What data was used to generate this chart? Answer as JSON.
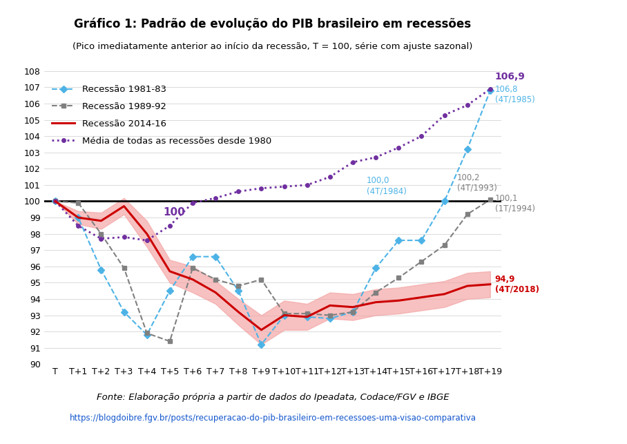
{
  "title": "Gráfico 1: Padrão de evolução do PIB brasileiro em recessões",
  "subtitle": "(Pico imediatamente anterior ao início da recessão, T = 100, série com ajuste sazonal)",
  "x_labels": [
    "T",
    "T+1",
    "T+2",
    "T+3",
    "T+4",
    "T+5",
    "T+6",
    "T+7",
    "T+8",
    "T+9",
    "T+10",
    "T+11",
    "T+12",
    "T+13",
    "T+14",
    "T+15",
    "T+16",
    "T+17",
    "T+18",
    "T+19"
  ],
  "ylim": [
    90,
    108
  ],
  "yticks": [
    90,
    91,
    92,
    93,
    94,
    95,
    96,
    97,
    98,
    99,
    100,
    101,
    102,
    103,
    104,
    105,
    106,
    107,
    108
  ],
  "recession_1981": [
    100,
    99.0,
    95.8,
    93.2,
    91.8,
    94.5,
    96.6,
    96.6,
    94.5,
    91.2,
    93.0,
    92.9,
    92.8,
    93.2,
    95.9,
    97.6,
    97.6,
    100.0,
    103.2,
    106.8
  ],
  "recession_1989": [
    100,
    99.9,
    98.0,
    95.9,
    91.9,
    91.4,
    95.9,
    95.2,
    94.8,
    95.2,
    93.1,
    93.1,
    93.0,
    93.2,
    94.4,
    95.3,
    96.3,
    97.3,
    99.2,
    100.1
  ],
  "recession_2014": [
    100,
    99.0,
    98.8,
    99.7,
    98.0,
    95.7,
    95.2,
    94.4,
    93.2,
    92.1,
    93.0,
    92.9,
    93.6,
    93.5,
    93.8,
    93.9,
    94.1,
    94.3,
    94.8,
    94.9
  ],
  "recession_2014_upper": [
    100,
    99.4,
    99.3,
    100.2,
    98.8,
    96.4,
    96.0,
    95.1,
    94.0,
    93.0,
    93.9,
    93.7,
    94.4,
    94.3,
    94.6,
    94.7,
    94.9,
    95.1,
    95.6,
    95.7
  ],
  "recession_2014_lower": [
    100,
    98.6,
    98.3,
    99.2,
    97.2,
    95.0,
    94.4,
    93.7,
    92.4,
    91.2,
    92.1,
    92.1,
    92.8,
    92.7,
    93.0,
    93.1,
    93.3,
    93.5,
    94.0,
    94.1
  ],
  "mean_all": [
    100,
    98.5,
    97.7,
    97.8,
    97.6,
    98.5,
    99.9,
    100.2,
    100.6,
    100.8,
    100.9,
    101.0,
    101.5,
    102.4,
    102.7,
    103.3,
    104.0,
    105.3,
    105.9,
    106.9
  ],
  "color_1981": "#4db3e6",
  "color_1989": "#808080",
  "color_2014": "#cc0000",
  "color_mean": "#7030a0",
  "color_shading": "#f4a0a0",
  "color_hline": "#000000",
  "fonte": "Fonte: Elaboração própria a partir de dados do Ipeadata, Codace/FGV e IBGE",
  "url": "https://blogdoibre.fgv.br/posts/recuperacao-do-pib-brasileiro-em-recessoes-uma-visao-comparativa",
  "legend_entries": [
    {
      "label": "Recessão 1981-83",
      "color": "#4db3e6",
      "linestyle": "--",
      "marker": "D"
    },
    {
      "label": "Recessão 1989-92",
      "color": "#808080",
      "linestyle": "--",
      "marker": "s"
    },
    {
      "label": "Recessão 2014-16",
      "color": "#cc0000",
      "linestyle": "-",
      "marker": ""
    },
    {
      "label": "Média de todas as recessões desde 1980",
      "color": "#7030a0",
      "linestyle": ":",
      "marker": "o"
    }
  ]
}
